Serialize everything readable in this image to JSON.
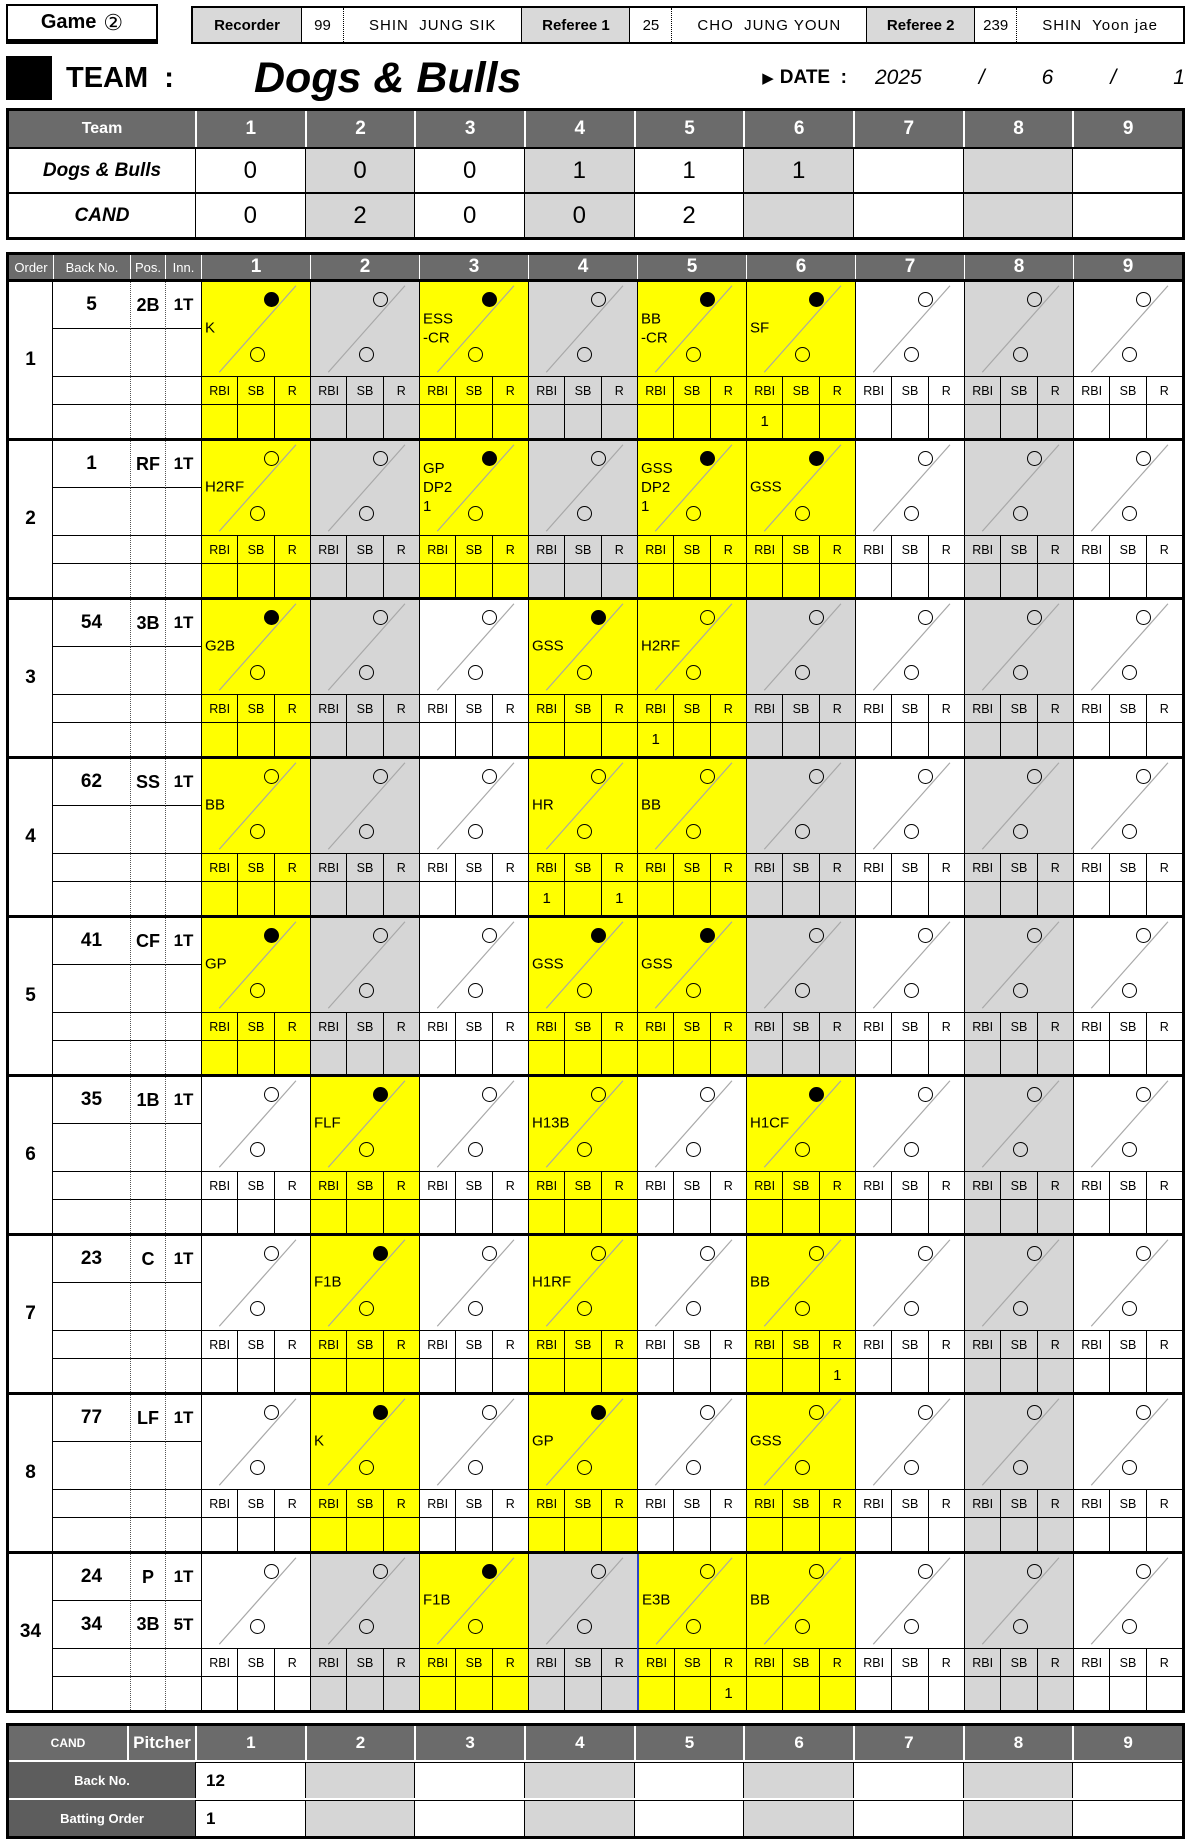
{
  "colors": {
    "highlight_yellow": "#ffff00",
    "shaded_gray": "#d6d6d6",
    "header_gray": "#6b6b6b",
    "label_gray": "#5d5d5d",
    "official_gray": "#d9d9d9",
    "cursor_blue": "#2f45c5"
  },
  "innings": [
    "1",
    "2",
    "3",
    "4",
    "5",
    "6",
    "7",
    "8",
    "9"
  ],
  "header": {
    "game_label": "Game",
    "game_number": "②",
    "officials": [
      {
        "role": "Recorder",
        "number": "99",
        "name": "SHIN  JUNG SIK"
      },
      {
        "role": "Referee 1",
        "number": "25",
        "name": "CHO  JUNG YOUN"
      },
      {
        "role": "Referee 2",
        "number": "239",
        "name": "SHIN  Yoon jae"
      }
    ],
    "team_label": "TEAM  :",
    "team_name": "Dogs & Bulls",
    "date_arrow": "▶",
    "date_label": "DATE  :",
    "date_parts": [
      "2025",
      "/",
      "6",
      "/",
      "1"
    ]
  },
  "linescore": {
    "team_header": "Team",
    "rows": [
      {
        "team": "Dogs & Bulls",
        "scores": [
          "0",
          "0",
          "0",
          "1",
          "1",
          "1",
          "",
          "",
          ""
        ]
      },
      {
        "team": "CAND",
        "scores": [
          "0",
          "2",
          "0",
          "0",
          "2",
          "",
          "",
          "",
          ""
        ]
      }
    ]
  },
  "grid": {
    "column_headers": [
      "Order",
      "Back No.",
      "Pos.",
      "Inn."
    ],
    "stat_labels": [
      "RBI",
      "SB",
      "R"
    ],
    "batters": [
      {
        "order": "1",
        "rows": [
          [
            "5",
            "2B",
            "1T"
          ],
          [
            "",
            "",
            ""
          ]
        ],
        "cells": [
          {
            "hl": 1,
            "note": "K",
            "top": "filled"
          },
          {},
          {
            "hl": 1,
            "note": "ESS\n-CR",
            "top": "filled"
          },
          {},
          {
            "hl": 1,
            "note": "BB\n-CR",
            "top": "filled"
          },
          {
            "hl": 1,
            "note": "SF",
            "top": "filled"
          },
          {},
          {},
          {}
        ],
        "stats": {
          "6": {
            "RBI": "1"
          }
        }
      },
      {
        "order": "2",
        "rows": [
          [
            "1",
            "RF",
            "1T"
          ],
          [
            "",
            "",
            ""
          ]
        ],
        "cells": [
          {
            "hl": 1,
            "note": "H2RF"
          },
          {},
          {
            "hl": 1,
            "note": "GP\nDP2\n1",
            "top": "filled"
          },
          {},
          {
            "hl": 1,
            "note": "GSS\nDP2\n1",
            "top": "filled"
          },
          {
            "hl": 1,
            "note": "GSS",
            "top": "filled"
          },
          {},
          {},
          {}
        ],
        "stats": {}
      },
      {
        "order": "3",
        "rows": [
          [
            "54",
            "3B",
            "1T"
          ],
          [
            "",
            "",
            ""
          ]
        ],
        "cells": [
          {
            "hl": 1,
            "note": "G2B",
            "top": "filled"
          },
          {},
          {},
          {
            "hl": 1,
            "note": "GSS",
            "top": "filled"
          },
          {
            "hl": 1,
            "note": "H2RF"
          },
          {},
          {},
          {},
          {}
        ],
        "stats": {
          "5": {
            "RBI": "1"
          }
        }
      },
      {
        "order": "4",
        "rows": [
          [
            "62",
            "SS",
            "1T"
          ],
          [
            "",
            "",
            ""
          ]
        ],
        "cells": [
          {
            "hl": 1,
            "note": "BB"
          },
          {},
          {},
          {
            "hl": 1,
            "note": "HR"
          },
          {
            "hl": 1,
            "note": "BB"
          },
          {},
          {},
          {},
          {}
        ],
        "stats": {
          "4": {
            "RBI": "1",
            "R": "1"
          }
        }
      },
      {
        "order": "5",
        "rows": [
          [
            "41",
            "CF",
            "1T"
          ],
          [
            "",
            "",
            ""
          ]
        ],
        "cells": [
          {
            "hl": 1,
            "note": "GP",
            "top": "filled"
          },
          {},
          {},
          {
            "hl": 1,
            "note": "GSS",
            "top": "filled"
          },
          {
            "hl": 1,
            "note": "GSS",
            "top": "filled"
          },
          {},
          {},
          {},
          {}
        ],
        "stats": {}
      },
      {
        "order": "6",
        "rows": [
          [
            "35",
            "1B",
            "1T"
          ],
          [
            "",
            "",
            ""
          ]
        ],
        "cells": [
          {},
          {
            "hl": 1,
            "note": "FLF",
            "top": "filled"
          },
          {},
          {
            "hl": 1,
            "note": "H13B"
          },
          {},
          {
            "hl": 1,
            "note": "H1CF",
            "top": "filled"
          },
          {},
          {},
          {}
        ],
        "stats": {}
      },
      {
        "order": "7",
        "rows": [
          [
            "23",
            "C",
            "1T"
          ],
          [
            "",
            "",
            ""
          ]
        ],
        "cells": [
          {},
          {
            "hl": 1,
            "note": "F1B",
            "top": "filled"
          },
          {},
          {
            "hl": 1,
            "note": "H1RF"
          },
          {},
          {
            "hl": 1,
            "note": "BB"
          },
          {},
          {},
          {}
        ],
        "stats": {
          "6": {
            "R": "1"
          }
        }
      },
      {
        "order": "8",
        "rows": [
          [
            "77",
            "LF",
            "1T"
          ],
          [
            "",
            "",
            ""
          ]
        ],
        "cells": [
          {},
          {
            "hl": 1,
            "note": "K",
            "top": "filled"
          },
          {},
          {
            "hl": 1,
            "note": "GP",
            "top": "filled"
          },
          {},
          {
            "hl": 1,
            "note": "GSS"
          },
          {},
          {},
          {}
        ],
        "stats": {}
      },
      {
        "order": "34",
        "rows": [
          [
            "24",
            "P",
            "1T"
          ],
          [
            "34",
            "3B",
            "5T"
          ]
        ],
        "cells": [
          {},
          {},
          {
            "hl": 1,
            "note": "F1B",
            "top": "filled"
          },
          {},
          {
            "hl": 1,
            "note": "E3B",
            "blue": 1
          },
          {
            "hl": 1,
            "note": "BB"
          },
          {},
          {},
          {}
        ],
        "stats": {
          "5": {
            "R": "1"
          }
        }
      }
    ]
  },
  "pitcher_table": {
    "team": "CAND",
    "title": "Pitcher",
    "rows": [
      {
        "label": "Back No.",
        "values": [
          "12",
          "",
          "",
          "",
          "",
          "",
          "",
          "",
          ""
        ]
      },
      {
        "label": "Batting Order",
        "values": [
          "1",
          "",
          "",
          "",
          "",
          "",
          "",
          "",
          ""
        ]
      }
    ]
  }
}
